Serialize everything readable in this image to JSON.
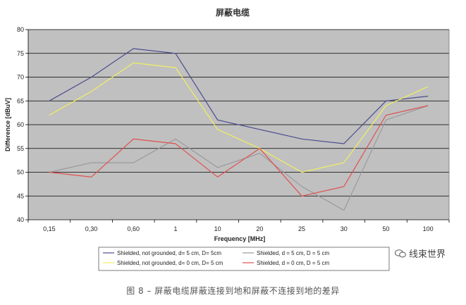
{
  "chart_data": {
    "type": "line",
    "title": "屏蔽电缆",
    "xlabel": "Frequency [MHz]",
    "ylabel": "Difference [dBuV]",
    "categories": [
      "0,15",
      "0,30",
      "0,60",
      "1",
      "10",
      "20",
      "25",
      "30",
      "50",
      "100"
    ],
    "ylim": [
      40,
      80
    ],
    "yticks": [
      40,
      45,
      50,
      55,
      60,
      65,
      70,
      75,
      80
    ],
    "grid": true,
    "legend_position": "bottom",
    "series": [
      {
        "name": "Shielded, not grounded, d= 5 cm, D= 5cm",
        "color": "#4b4b8f",
        "values": [
          65,
          70,
          76,
          75,
          61,
          59,
          57,
          56,
          65,
          66
        ]
      },
      {
        "name": "Shielded, d = 5 cm, D = 5 cm",
        "color": "#9a9a9a",
        "values": [
          50,
          52,
          52,
          57,
          51,
          54,
          47,
          42,
          61,
          64
        ]
      },
      {
        "name": "Shielded, not grounded, d= 0 cm, D= 5 cm",
        "color": "#f0f060",
        "values": [
          62,
          67,
          73,
          72,
          59,
          55,
          50,
          52,
          64,
          68
        ]
      },
      {
        "name": "Shielded, d = 0 cm, D = 5 cm",
        "color": "#e05050",
        "values": [
          50,
          49,
          57,
          56,
          49,
          55,
          45,
          47,
          62,
          64
        ]
      }
    ],
    "plot_background": "#c0c0c0"
  },
  "caption": "图 8 – 屏蔽电缆屏蔽连接到地和屏蔽不连接到地的差异",
  "watermark": {
    "text": "线束世界",
    "icon": "wechat-icon"
  }
}
